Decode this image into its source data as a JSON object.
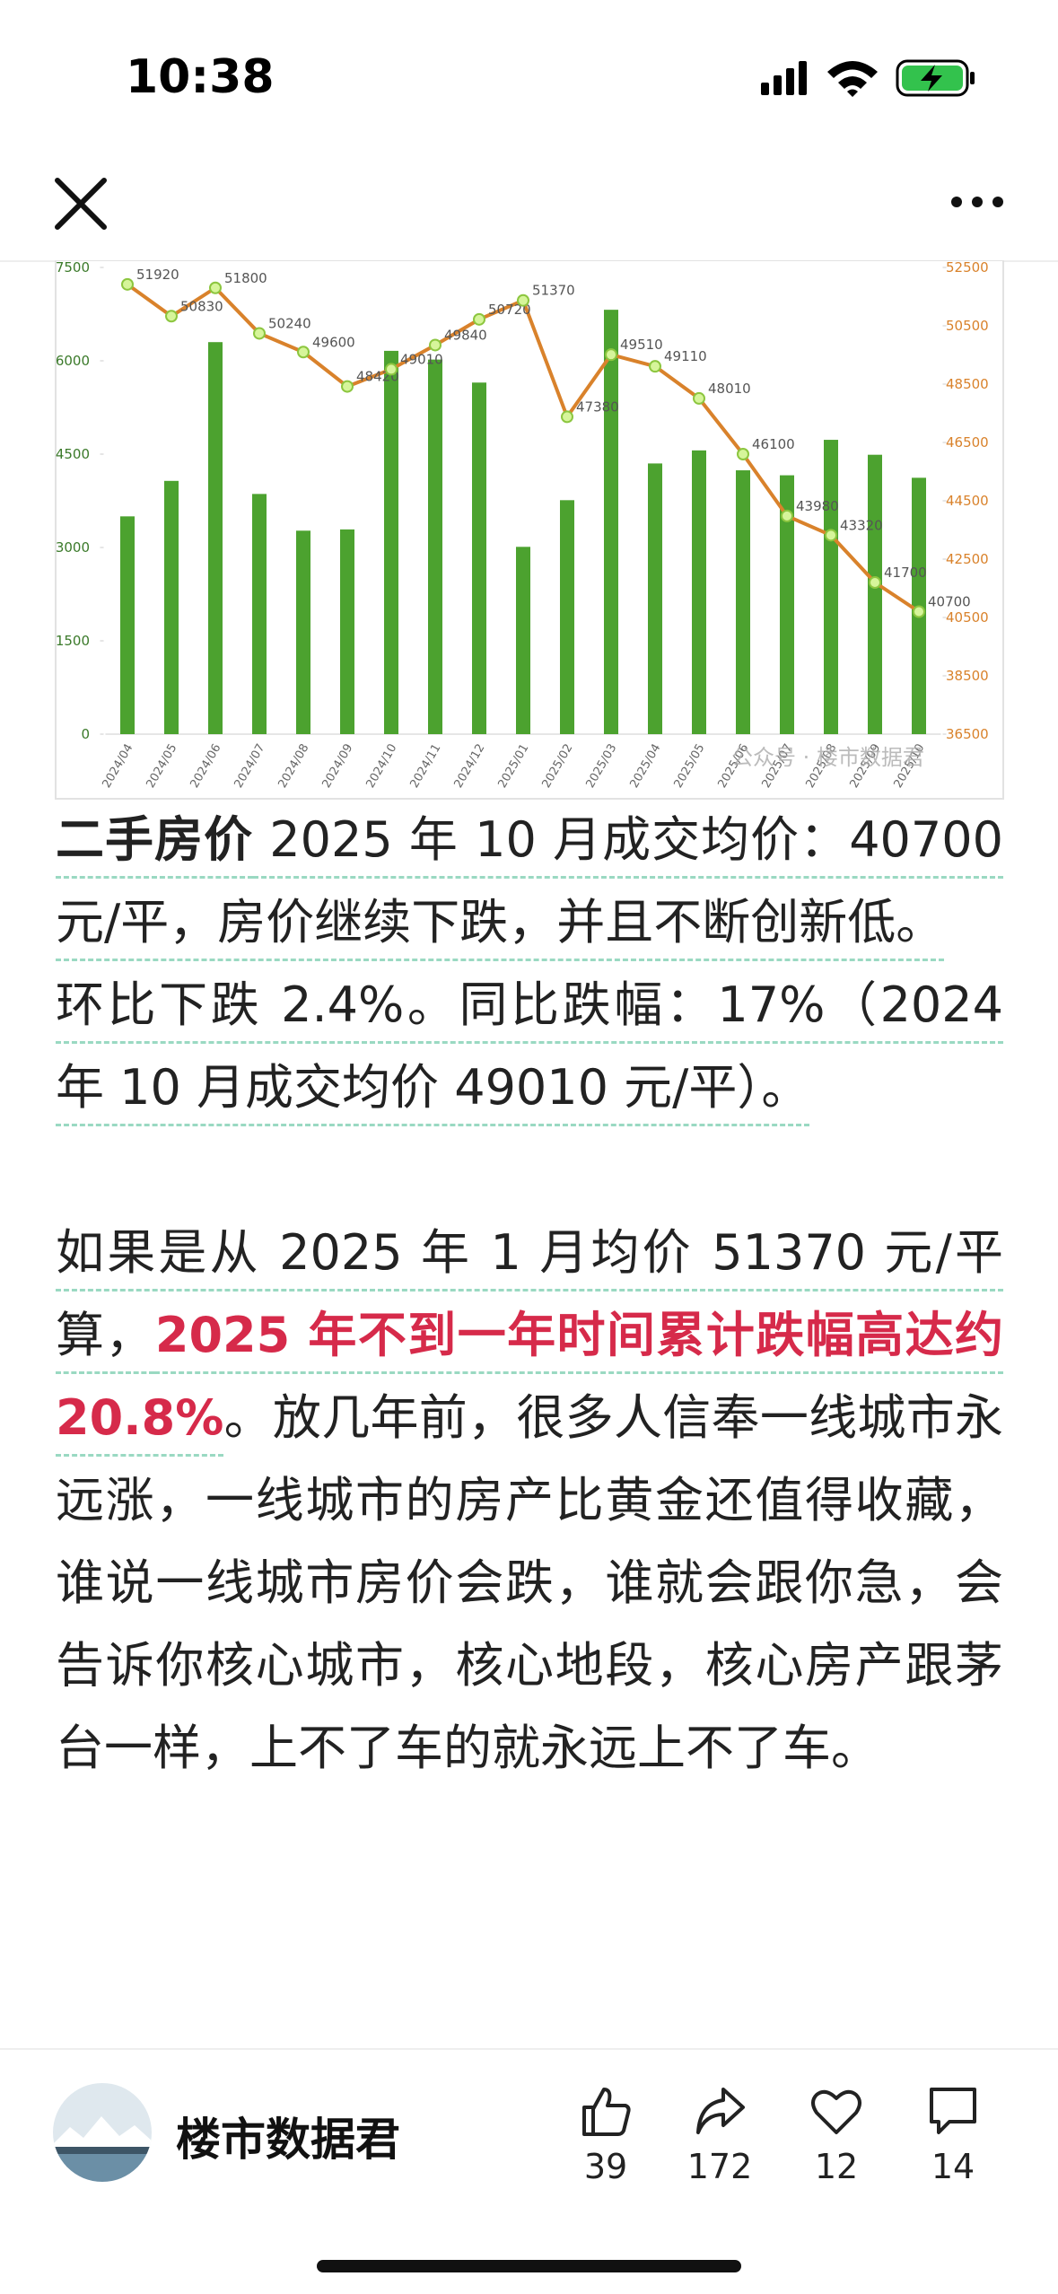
{
  "status_bar": {
    "time": "10:38"
  },
  "chart_data": {
    "type": "bar",
    "categories": [
      "2024/04",
      "2024/05",
      "2024/06",
      "2024/07",
      "2024/08",
      "2024/09",
      "2024/10",
      "2024/11",
      "2024/12",
      "2025/01",
      "2025/02",
      "2025/03",
      "2025/04",
      "2025/05",
      "2025/06",
      "2025/07",
      "2025/08",
      "2025/09",
      "2025/10"
    ],
    "series": [
      {
        "type": "bar",
        "color": "#4ca22f",
        "values": [
          3500,
          4070,
          6300,
          3860,
          3270,
          3290,
          6160,
          6020,
          5650,
          3010,
          3760,
          6820,
          4350,
          4560,
          4240,
          4160,
          4730,
          4490,
          4120
        ]
      },
      {
        "type": "line",
        "axis": "y2",
        "color": "#d9822b",
        "values": [
          51920,
          50830,
          51800,
          50240,
          49600,
          48420,
          49010,
          49840,
          50720,
          51370,
          47380,
          49510,
          49110,
          48010,
          46100,
          43980,
          43320,
          41700,
          40700
        ]
      }
    ],
    "ylim": [
      0,
      7500
    ],
    "yticks": [
      0,
      1500,
      3000,
      4500,
      6000,
      7500
    ],
    "y2lim": [
      36500,
      52500
    ],
    "y2ticks": [
      36500,
      38500,
      40500,
      42500,
      44500,
      46500,
      48500,
      50500,
      52500
    ],
    "watermark": "公众号 · 楼市数据君"
  },
  "article": {
    "paragraphs": [
      {
        "runs": [
          {
            "text": "二手房价",
            "bold": true,
            "underline": true
          },
          {
            "text": " 2025 年 10 月成交均价：40700 元/平，房价继续下跌，并且不断创新低。",
            "underline": true
          }
        ]
      },
      {
        "runs": [
          {
            "text": "环比下跌 2.4%。同比跌幅：17%（2024 年 10 月成交均价 49010 元/平）。",
            "underline": true
          }
        ]
      },
      {
        "runs": [
          {
            "text": "如果是从 2025 年 1 月均价 51370 元/平算，",
            "underline": true
          },
          {
            "text": "2025 年不到一年时间累计跌幅高达约 20.8%",
            "bold": true,
            "red": true,
            "underline": true
          },
          {
            "text": "。放几年前，很多人信奉一线城市永远涨，一线城市的房产比黄金还值得收藏，谁说一线城市房价会跌，谁就会跟你急，会告诉你核心城市，核心地段，核心房产跟茅台一样，上不了车的就永远上不了车。"
          }
        ]
      }
    ]
  },
  "footer": {
    "author": "楼市数据君",
    "likes": 39,
    "shares": 172,
    "favorites": 12,
    "comments": 14
  }
}
